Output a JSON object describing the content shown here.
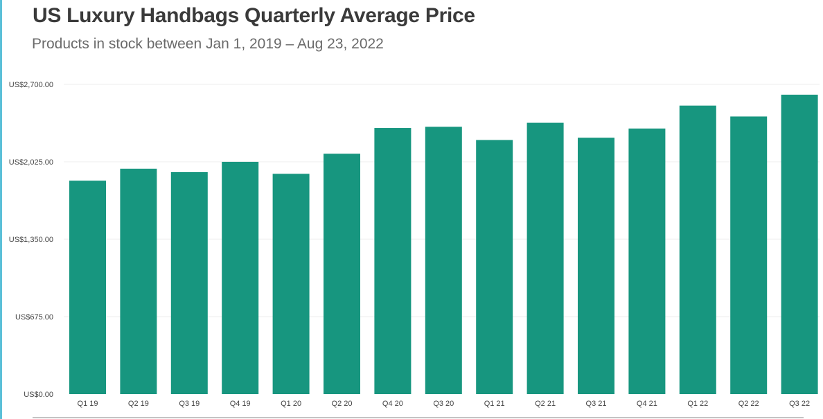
{
  "header": {
    "title": "US Luxury Handbags Quarterly Average Price",
    "subtitle": "Products in stock between Jan 1, 2019 – Aug 23, 2022"
  },
  "colors": {
    "bar": "#17967f",
    "grid": "#ececec",
    "axis": "#888888",
    "accent": "#5bc0d8"
  },
  "chart_data": {
    "type": "bar",
    "title": "US Luxury Handbags Quarterly Average Price",
    "subtitle": "Products in stock between Jan 1, 2019 – Aug 23, 2022",
    "xlabel": "",
    "ylabel": "",
    "categories": [
      "Q1 19",
      "Q2 19",
      "Q3 19",
      "Q4 19",
      "Q1 20",
      "Q2 20",
      "Q4 20",
      "Q3 20",
      "Q1 21",
      "Q2 21",
      "Q3 21",
      "Q4 21",
      "Q1 22",
      "Q2 22",
      "Q3 22"
    ],
    "values": [
      1860,
      1965,
      1935,
      2025,
      1920,
      2095,
      2320,
      2330,
      2215,
      2365,
      2235,
      2315,
      2515,
      2420,
      2610
    ],
    "ylim": [
      0,
      2700
    ],
    "yticks": [
      0,
      675,
      1350,
      2025,
      2700
    ],
    "ytick_labels": [
      "US$0.00",
      "US$675.00",
      "US$1,350.00",
      "US$2,025.00",
      "US$2,700.00"
    ],
    "grid": true,
    "legend": "none"
  }
}
